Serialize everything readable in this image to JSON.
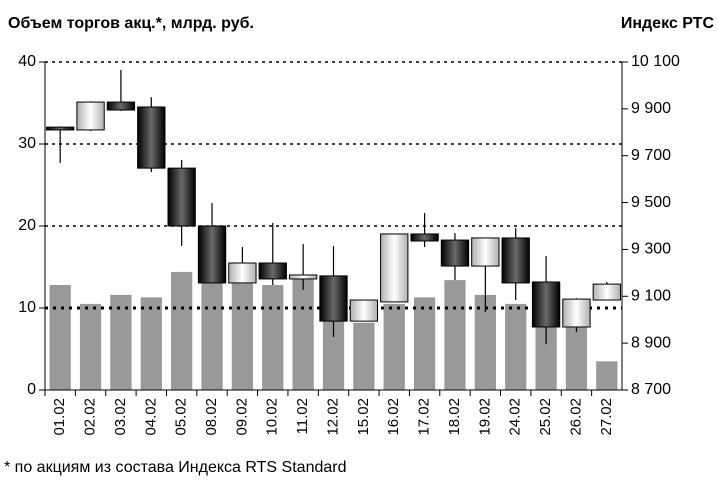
{
  "chart_data": {
    "type": "combo",
    "title": "Объем торгов акц.*, млрд. руб.",
    "y2_title": "Индекс РТС",
    "note": "* по акциям из состава Индекса RTS Standard",
    "categories": [
      "01.02",
      "02.02",
      "03.02",
      "04.02",
      "05.02",
      "08.02",
      "09.02",
      "10.02",
      "11.02",
      "12.02",
      "15.02",
      "16.02",
      "17.02",
      "18.02",
      "19.02",
      "24.02",
      "25.02",
      "26.02",
      "27.02"
    ],
    "ylim": [
      0,
      40
    ],
    "yticks": [
      0,
      10,
      20,
      30,
      40
    ],
    "y2lim": [
      8700,
      10100
    ],
    "y2ticks": [
      {
        "value": 8700,
        "label": "8 700"
      },
      {
        "value": 8900,
        "label": "8 900"
      },
      {
        "value": 9100,
        "label": "9 100"
      },
      {
        "value": 9300,
        "label": "9 300"
      },
      {
        "value": 9500,
        "label": "9 500"
      },
      {
        "value": 9700,
        "label": "9 700"
      },
      {
        "value": 9900,
        "label": "9 900"
      },
      {
        "value": 10100,
        "label": "10 100"
      }
    ],
    "grid": true,
    "series": [
      {
        "type": "bar",
        "color": "#999999",
        "values": [
          12.8,
          10.5,
          11.6,
          11.3,
          14.4,
          13.4,
          13.0,
          12.8,
          13.6,
          10.0,
          8.2,
          10.5,
          11.3,
          13.4,
          11.6,
          10.5,
          9.0,
          8.0,
          3.5
        ]
      },
      {
        "type": "candlestick",
        "axis": "y2",
        "up_color": "#e6e6e6",
        "down_color": "#262626",
        "open": [
          9822,
          9810,
          9929,
          9908,
          9647,
          9400,
          9157,
          9242,
          9174,
          9187,
          8994,
          9076,
          9366,
          9340,
          9229,
          9349,
          9161,
          8969,
          9084
        ],
        "close": [
          9810,
          9929,
          9895,
          9647,
          9400,
          9157,
          9242,
          9174,
          9191,
          8994,
          9084,
          9366,
          9336,
          9229,
          9349,
          9157,
          8969,
          9088,
          9152
        ],
        "high": [
          9825,
          9932,
          10066,
          9950,
          9682,
          9498,
          9310,
          9413,
          9323,
          9315,
          9084,
          9366,
          9455,
          9370,
          9349,
          9391,
          9272,
          9092,
          9161
        ],
        "low": [
          9669,
          9805,
          9891,
          9630,
          9315,
          9157,
          9157,
          9148,
          9127,
          8926,
          8994,
          9076,
          9310,
          9169,
          9033,
          9084,
          8896,
          8948,
          9084
        ]
      }
    ]
  }
}
